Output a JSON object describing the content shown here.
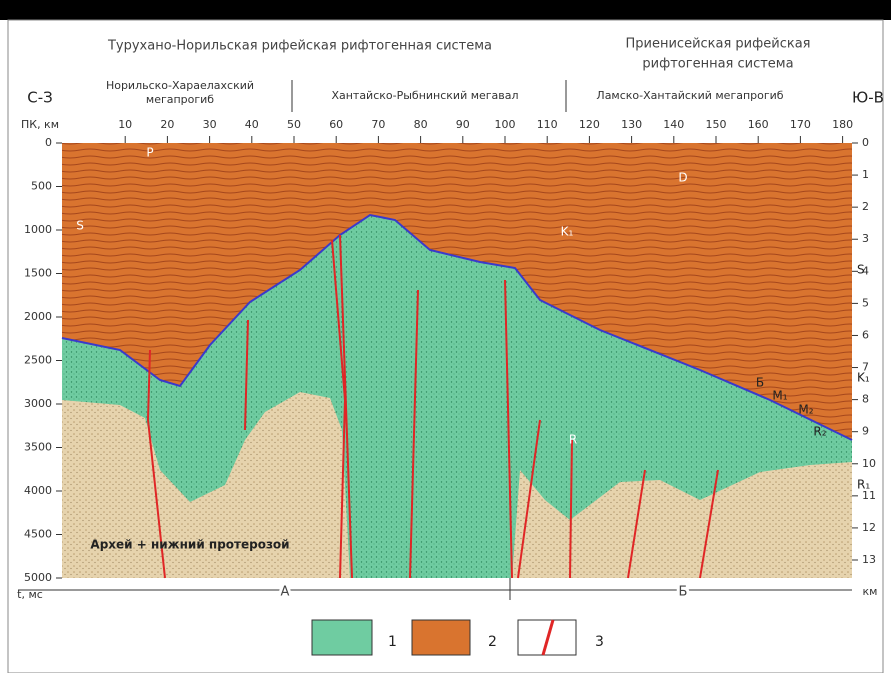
{
  "systems": [
    "Турухано-Норильская рифейская рифтогенная система",
    "Приенисейская рифейская",
    "рифтогенная система"
  ],
  "units": [
    [
      "Норильско-Хараелахский",
      "мегапрогиб"
    ],
    "Хантайско-Рыбнинский мегавал",
    "Ламско-Хантайский мегапрогиб"
  ],
  "directions": {
    "left": "С-З",
    "right": "Ю-В"
  },
  "top_axis": {
    "label": "ПК, км",
    "ticks": [
      10,
      20,
      30,
      40,
      50,
      60,
      70,
      80,
      90,
      100,
      110,
      120,
      130,
      140,
      150,
      160,
      170,
      180
    ]
  },
  "left_axis": {
    "label": "t, мс",
    "ticks": [
      0,
      500,
      1000,
      1500,
      2000,
      2500,
      3000,
      3500,
      4000,
      4500,
      5000
    ]
  },
  "right_axis": {
    "label": "км",
    "ticks": [
      0,
      1,
      2,
      3,
      4,
      5,
      6,
      7,
      8,
      9,
      10,
      11,
      12,
      13
    ]
  },
  "section_labels": [
    "P",
    "D",
    "S",
    "K₁",
    "S",
    "K₁",
    "Б",
    "M₁",
    "M₂",
    "R₂",
    "R",
    "R₁",
    "Архей + нижний протерозой"
  ],
  "blocks": [
    "А",
    "Б"
  ],
  "legend": [
    "1",
    "2",
    "3"
  ]
}
